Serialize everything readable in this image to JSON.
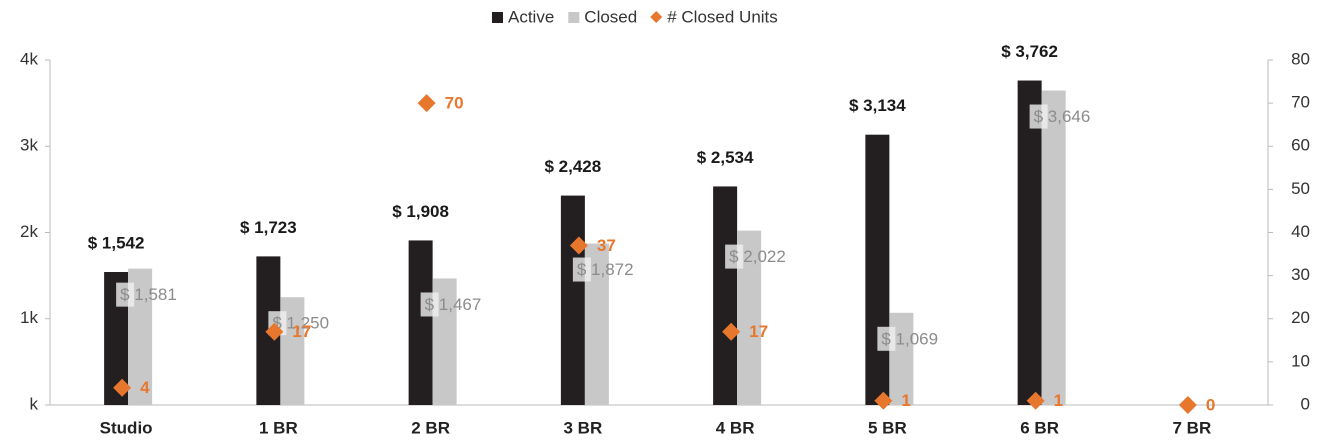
{
  "chart_data": {
    "type": "bar",
    "categories": [
      "Studio",
      "1 BR",
      "2 BR",
      "3 BR",
      "4 BR",
      "5 BR",
      "6 BR",
      "7 BR"
    ],
    "series": [
      {
        "name": "Active",
        "color": "#231f20",
        "values": [
          1542,
          1723,
          1908,
          2428,
          2534,
          3134,
          3762,
          null
        ],
        "value_labels": [
          "$ 1,542",
          "$ 1,723",
          "$ 1,908",
          "$ 2,428",
          "$ 2,534",
          "$ 3,134",
          "$ 3,762",
          null
        ]
      },
      {
        "name": "Closed",
        "color": "#c8c8c8",
        "values": [
          1581,
          1250,
          1467,
          1872,
          2022,
          1069,
          3646,
          null
        ],
        "value_labels": [
          "$ 1,581",
          "$ 1,250",
          "$ 1,467",
          "$ 1,872",
          "$ 2,022",
          "$ 1,069",
          "$ 3,646",
          null
        ]
      },
      {
        "name": "# Closed Units",
        "color": "#e8772e",
        "type": "scatter",
        "axis": "y2",
        "values": [
          4,
          17,
          70,
          37,
          17,
          1,
          1,
          0
        ]
      }
    ],
    "ylim": [
      0,
      4000
    ],
    "yticks": [
      {
        "value": 0,
        "label": "k"
      },
      {
        "value": 1000,
        "label": "1k"
      },
      {
        "value": 2000,
        "label": "2k"
      },
      {
        "value": 3000,
        "label": "3k"
      },
      {
        "value": 4000,
        "label": "4k"
      }
    ],
    "y2lim": [
      0,
      80
    ],
    "y2ticks": [
      0,
      10,
      20,
      30,
      40,
      50,
      60,
      70,
      80
    ],
    "legend": "top"
  }
}
